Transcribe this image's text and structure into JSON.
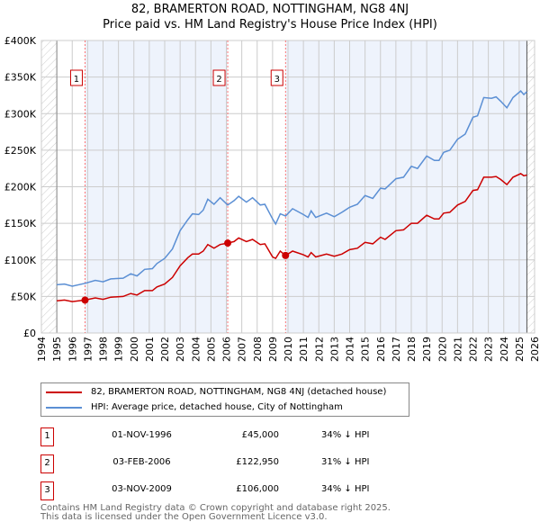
{
  "chart_data": {
    "type": "line",
    "title": "82, BRAMERTON ROAD, NOTTINGHAM, NG8 4NJ",
    "subtitle": "Price paid vs. HM Land Registry's House Price Index (HPI)",
    "xlim": [
      1994,
      2026
    ],
    "ylim": [
      0,
      400000
    ],
    "x_ticks": [
      "1994",
      "1995",
      "1996",
      "1997",
      "1998",
      "1999",
      "2000",
      "2001",
      "2002",
      "2003",
      "2004",
      "2005",
      "2006",
      "2007",
      "2008",
      "2009",
      "2010",
      "2011",
      "2012",
      "2013",
      "2014",
      "2015",
      "2016",
      "2017",
      "2018",
      "2019",
      "2020",
      "2021",
      "2022",
      "2023",
      "2024",
      "2025",
      "2026"
    ],
    "y_ticks": [
      {
        "v": 0,
        "label": "£0"
      },
      {
        "v": 50000,
        "label": "£50K"
      },
      {
        "v": 100000,
        "label": "£100K"
      },
      {
        "v": 150000,
        "label": "£150K"
      },
      {
        "v": 200000,
        "label": "£200K"
      },
      {
        "v": 250000,
        "label": "£250K"
      },
      {
        "v": 300000,
        "label": "£300K"
      },
      {
        "v": 350000,
        "label": "£350K"
      },
      {
        "v": 400000,
        "label": "£400K"
      }
    ],
    "grid": true,
    "hatched_ranges": [
      [
        1994,
        1995
      ],
      [
        2025.5,
        2026
      ]
    ],
    "shaded_ranges": [
      [
        1996.83,
        2006.09
      ],
      [
        2009.84,
        2025.5
      ]
    ],
    "x": [
      1995.0,
      1995.5,
      1996.0,
      1996.83,
      1997.5,
      1998.0,
      1998.5,
      1999.3,
      1999.8,
      2000.2,
      2000.7,
      2001.2,
      2001.5,
      2002.0,
      2002.5,
      2003.0,
      2003.5,
      2003.8,
      2004.2,
      2004.5,
      2004.8,
      2005.2,
      2005.6,
      2006.09,
      2006.5,
      2006.8,
      2007.3,
      2007.7,
      2008.2,
      2008.5,
      2009.0,
      2009.2,
      2009.5,
      2009.84,
      2010.3,
      2011.0,
      2011.3,
      2011.5,
      2011.8,
      2012.5,
      2013.0,
      2013.5,
      2014.0,
      2014.5,
      2015.0,
      2015.5,
      2016.0,
      2016.3,
      2017.0,
      2017.5,
      2018.0,
      2018.4,
      2019.0,
      2019.5,
      2019.8,
      2020.1,
      2020.5,
      2021.0,
      2021.5,
      2022.0,
      2022.3,
      2022.7,
      2023.2,
      2023.5,
      2023.8,
      2024.2,
      2024.6,
      2025.1,
      2025.3,
      2025.5
    ],
    "series": [
      {
        "name": "82, BRAMERTON ROAD, NOTTINGHAM, NG8 4NJ (detached house)",
        "color": "#cc0000",
        "values": [
          44,
          45,
          43,
          45,
          48,
          46,
          49,
          50,
          54,
          52,
          58,
          58,
          63,
          67,
          76,
          92,
          103,
          108,
          108,
          112,
          121,
          116,
          121,
          123,
          125,
          130,
          125,
          128,
          121,
          122,
          104,
          102,
          112,
          106,
          112,
          107,
          104,
          110,
          104,
          108,
          105,
          108,
          114,
          116,
          124,
          122,
          131,
          128,
          140,
          141,
          150,
          150,
          161,
          156,
          156,
          164,
          165,
          175,
          180,
          195,
          196,
          213,
          213,
          214,
          210,
          203,
          213,
          218,
          215,
          216
        ]
      },
      {
        "name": "HPI: Average price, detached house, City of Nottingham",
        "color": "#5b8fd4",
        "values": [
          66,
          67,
          64,
          68,
          72,
          70,
          74,
          75,
          81,
          78,
          87,
          88,
          95,
          102,
          115,
          140,
          155,
          163,
          162,
          168,
          183,
          176,
          185,
          175,
          181,
          187,
          179,
          185,
          175,
          176,
          156,
          149,
          163,
          160,
          170,
          162,
          158,
          167,
          158,
          164,
          159,
          165,
          172,
          176,
          188,
          184,
          198,
          197,
          211,
          213,
          228,
          225,
          242,
          236,
          236,
          247,
          250,
          265,
          272,
          295,
          297,
          322,
          321,
          323,
          317,
          308,
          322,
          331,
          326,
          330
        ]
      }
    ],
    "value_unit": "thousand GBP",
    "sales": [
      {
        "id": "1",
        "x": 1996.83,
        "value": 45000,
        "date": "01-NOV-1996",
        "price": "£45,000",
        "hpi": "34% ↓ HPI"
      },
      {
        "id": "2",
        "x": 2006.09,
        "value": 122950,
        "date": "03-FEB-2006",
        "price": "£122,950",
        "hpi": "31% ↓ HPI"
      },
      {
        "id": "3",
        "x": 2009.84,
        "value": 106000,
        "date": "03-NOV-2009",
        "price": "£106,000",
        "hpi": "34% ↓ HPI"
      }
    ]
  },
  "footer": [
    "Contains HM Land Registry data © Crown copyright and database right 2025.",
    "This data is licensed under the Open Government Licence v3.0."
  ]
}
